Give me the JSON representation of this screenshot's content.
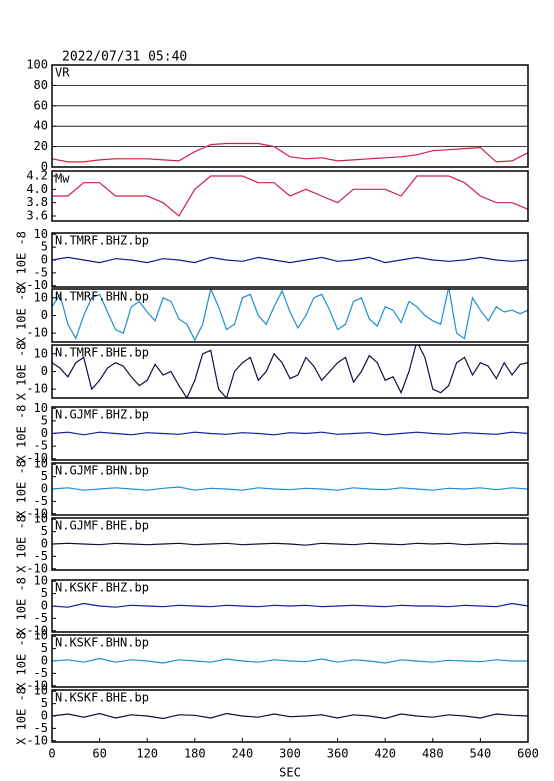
{
  "chart_data": [
    {
      "type": "line",
      "title": "2022/07/31 05:40",
      "label": "VR",
      "grid": true,
      "x": [
        0,
        20,
        40,
        60,
        80,
        100,
        120,
        140,
        160,
        180,
        200,
        220,
        240,
        260,
        280,
        300,
        320,
        340,
        360,
        380,
        400,
        420,
        440,
        460,
        480,
        500,
        520,
        540,
        560,
        580,
        600
      ],
      "series": [
        {
          "color": "#d0204a",
          "values": [
            8,
            5,
            5,
            7,
            8,
            8,
            8,
            7,
            6,
            15,
            22,
            23,
            23,
            23,
            20,
            10,
            8,
            9,
            6,
            7,
            8,
            9,
            10,
            12,
            16,
            17,
            18,
            19,
            5,
            6,
            14
          ]
        }
      ],
      "xlim": [
        0,
        600
      ],
      "ylim": [
        0,
        100
      ],
      "yticks": [
        0,
        20,
        40,
        60,
        80,
        100
      ]
    },
    {
      "type": "line",
      "label": "Mw",
      "x": [
        0,
        20,
        40,
        60,
        80,
        100,
        120,
        140,
        160,
        180,
        200,
        220,
        240,
        260,
        280,
        300,
        320,
        340,
        360,
        380,
        400,
        420,
        440,
        460,
        480,
        500,
        520,
        540,
        560,
        580,
        600
      ],
      "series": [
        {
          "color": "#d0204a",
          "values": [
            3.9,
            3.9,
            4.1,
            4.1,
            3.9,
            3.9,
            3.9,
            3.8,
            3.6,
            4.0,
            4.2,
            4.2,
            4.2,
            4.1,
            4.1,
            3.9,
            4.0,
            3.9,
            3.8,
            4.0,
            4.0,
            4.0,
            3.9,
            4.2,
            4.2,
            4.2,
            4.1,
            3.9,
            3.8,
            3.8,
            3.7
          ]
        }
      ],
      "xlim": [
        0,
        600
      ],
      "ylim": [
        3.525,
        4.275
      ],
      "yticks": [
        3.6,
        3.8,
        {
          "value": 4,
          "label": "4.0"
        },
        4.2
      ]
    },
    {
      "type": "line",
      "label": "N.TMRF.BHZ.bp",
      "ylabel": "X 10E -8",
      "x": [
        0,
        20,
        40,
        60,
        80,
        100,
        120,
        140,
        160,
        180,
        200,
        220,
        240,
        260,
        280,
        300,
        320,
        340,
        360,
        380,
        400,
        420,
        440,
        460,
        480,
        500,
        520,
        540,
        560,
        580,
        600
      ],
      "series": [
        {
          "color": "#1a1a9a",
          "values": [
            0,
            1,
            0,
            -1,
            0.5,
            0,
            -1,
            0.5,
            0,
            -1,
            1,
            0,
            -0.5,
            1,
            0,
            -1,
            0,
            1,
            -0.5,
            0,
            1,
            -1,
            0,
            1,
            0,
            -0.5,
            0,
            1,
            0,
            -0.5,
            0
          ]
        }
      ],
      "xlim": [
        0,
        600
      ],
      "ylim": [
        -10.5,
        10.5
      ],
      "yticks": [
        -10,
        -5,
        0,
        5,
        10
      ]
    },
    {
      "type": "line",
      "label": "N.TMRF.BHN.bp",
      "ylabel": "X 10E -8",
      "x": [
        0,
        10,
        20,
        30,
        40,
        50,
        60,
        70,
        80,
        90,
        100,
        110,
        120,
        130,
        140,
        150,
        160,
        170,
        180,
        190,
        200,
        210,
        220,
        230,
        240,
        250,
        260,
        270,
        280,
        290,
        300,
        310,
        320,
        330,
        340,
        350,
        360,
        370,
        380,
        390,
        400,
        410,
        420,
        430,
        440,
        450,
        460,
        470,
        480,
        490,
        500,
        510,
        520,
        530,
        540,
        550,
        560,
        570,
        580,
        590,
        600
      ],
      "series": [
        {
          "color": "#1e90d0",
          "values": [
            5,
            12,
            -5,
            -13,
            0,
            10,
            12,
            2,
            -8,
            -10,
            5,
            8,
            2,
            -3,
            10,
            8,
            -2,
            -5,
            -14,
            -5,
            15,
            5,
            -8,
            -5,
            10,
            12,
            0,
            -5,
            5,
            14,
            2,
            -7,
            0,
            10,
            12,
            3,
            -8,
            -5,
            8,
            10,
            -2,
            -6,
            5,
            3,
            -4,
            8,
            5,
            0,
            -3,
            -5,
            16,
            -10,
            -13,
            10,
            3,
            -3,
            5,
            2,
            3,
            1,
            3
          ]
        }
      ],
      "xlim": [
        0,
        600
      ],
      "ylim": [
        -15,
        15
      ],
      "yticks": [
        -10,
        0,
        10
      ]
    },
    {
      "type": "line",
      "label": "N.TMRF.BHE.bp",
      "ylabel": "X 10E -8",
      "x": [
        0,
        10,
        20,
        30,
        40,
        50,
        60,
        70,
        80,
        90,
        100,
        110,
        120,
        130,
        140,
        150,
        160,
        170,
        180,
        190,
        200,
        210,
        220,
        230,
        240,
        250,
        260,
        270,
        280,
        290,
        300,
        310,
        320,
        330,
        340,
        350,
        360,
        370,
        380,
        390,
        400,
        410,
        420,
        430,
        440,
        450,
        460,
        470,
        480,
        490,
        500,
        510,
        520,
        530,
        540,
        550,
        560,
        570,
        580,
        590,
        600
      ],
      "series": [
        {
          "color": "#101040",
          "values": [
            5,
            2,
            -3,
            5,
            8,
            -10,
            -5,
            2,
            5,
            3,
            -3,
            -8,
            -5,
            4,
            -2,
            0,
            -8,
            -15,
            -5,
            10,
            12,
            -10,
            -15,
            0,
            5,
            8,
            -5,
            0,
            10,
            5,
            -4,
            -2,
            8,
            3,
            -5,
            0,
            5,
            8,
            -6,
            0,
            9,
            5,
            -5,
            -3,
            -12,
            0,
            17,
            8,
            -10,
            -12,
            -8,
            5,
            8,
            -2,
            5,
            3,
            -4,
            5,
            -2,
            4,
            5
          ]
        }
      ],
      "xlim": [
        0,
        600
      ],
      "ylim": [
        -15,
        15
      ],
      "yticks": [
        -10,
        0,
        10
      ]
    },
    {
      "type": "line",
      "label": "N.GJMF.BHZ.bp",
      "ylabel": "X 10E -8",
      "x": [
        0,
        20,
        40,
        60,
        80,
        100,
        120,
        140,
        160,
        180,
        200,
        220,
        240,
        260,
        280,
        300,
        320,
        340,
        360,
        380,
        400,
        420,
        440,
        460,
        480,
        500,
        520,
        540,
        560,
        580,
        600
      ],
      "series": [
        {
          "color": "#1a1a9a",
          "values": [
            0,
            0.5,
            -0.5,
            0.5,
            0,
            -0.5,
            0.3,
            0,
            -0.3,
            0.5,
            0,
            -0.3,
            0.3,
            0,
            -0.5,
            0.3,
            0,
            0.5,
            -0.3,
            0,
            0.3,
            -0.5,
            0,
            0.5,
            0,
            -0.3,
            0.3,
            0,
            -0.3,
            0.5,
            0
          ]
        }
      ],
      "xlim": [
        0,
        600
      ],
      "ylim": [
        -10.5,
        10.5
      ],
      "yticks": [
        -10,
        -5,
        0,
        5,
        10
      ]
    },
    {
      "type": "line",
      "label": "N.GJMF.BHN.bp",
      "ylabel": "X 10E -8",
      "x": [
        0,
        20,
        40,
        60,
        80,
        100,
        120,
        140,
        160,
        180,
        200,
        220,
        240,
        260,
        280,
        300,
        320,
        340,
        360,
        380,
        400,
        420,
        440,
        460,
        480,
        500,
        520,
        540,
        560,
        580,
        600
      ],
      "series": [
        {
          "color": "#1e90d0",
          "values": [
            0,
            0.5,
            -0.5,
            0,
            0.5,
            0,
            -0.5,
            0.3,
            0.8,
            -0.5,
            0.3,
            0,
            -0.5,
            0.5,
            0,
            -0.3,
            0.3,
            0,
            -0.5,
            0.5,
            0,
            -0.3,
            0.5,
            0,
            -0.5,
            0.3,
            0,
            0.5,
            -0.3,
            0.5,
            0
          ]
        }
      ],
      "xlim": [
        0,
        600
      ],
      "ylim": [
        -10.5,
        10.5
      ],
      "yticks": [
        -10,
        -5,
        0,
        5,
        10
      ]
    },
    {
      "type": "line",
      "label": "N.GJMF.BHE.bp",
      "ylabel": "X 10E -8",
      "x": [
        0,
        20,
        40,
        60,
        80,
        100,
        120,
        140,
        160,
        180,
        200,
        220,
        240,
        260,
        280,
        300,
        320,
        340,
        360,
        380,
        400,
        420,
        440,
        460,
        480,
        500,
        520,
        540,
        560,
        580,
        600
      ],
      "series": [
        {
          "color": "#101040",
          "values": [
            0,
            0.3,
            0,
            -0.3,
            0.3,
            0,
            -0.3,
            0,
            0.3,
            -0.3,
            0,
            0.3,
            -0.3,
            0,
            0.3,
            0,
            -0.5,
            0.3,
            0,
            -0.3,
            0.3,
            0,
            -0.3,
            0.3,
            0,
            0.3,
            -0.3,
            0,
            0.3,
            0,
            0
          ]
        }
      ],
      "xlim": [
        0,
        600
      ],
      "ylim": [
        -10.5,
        10.5
      ],
      "yticks": [
        -10,
        -5,
        0,
        5,
        10
      ]
    },
    {
      "type": "line",
      "label": "N.KSKF.BHZ.bp",
      "ylabel": "X 10E -8",
      "x": [
        0,
        20,
        40,
        60,
        80,
        100,
        120,
        140,
        160,
        180,
        200,
        220,
        240,
        260,
        280,
        300,
        320,
        340,
        360,
        380,
        400,
        420,
        440,
        460,
        480,
        500,
        520,
        540,
        560,
        580,
        600
      ],
      "series": [
        {
          "color": "#1a1a9a",
          "values": [
            0,
            -0.5,
            1,
            0,
            -0.5,
            0.3,
            0,
            -0.3,
            0.3,
            0,
            -0.3,
            0.3,
            0,
            -0.3,
            0.3,
            0,
            0.3,
            -0.3,
            0,
            0.3,
            0,
            -0.3,
            0.3,
            0,
            0,
            -0.3,
            0.3,
            0,
            -0.3,
            1,
            0
          ]
        }
      ],
      "xlim": [
        0,
        600
      ],
      "ylim": [
        -10.5,
        10.5
      ],
      "yticks": [
        -10,
        -5,
        0,
        5,
        10
      ]
    },
    {
      "type": "line",
      "label": "N.KSKF.BHN.bp",
      "ylabel": "X 10E -8",
      "x": [
        0,
        20,
        40,
        60,
        80,
        100,
        120,
        140,
        160,
        180,
        200,
        220,
        240,
        260,
        280,
        300,
        320,
        340,
        360,
        380,
        400,
        420,
        440,
        460,
        480,
        500,
        520,
        540,
        560,
        580,
        600
      ],
      "series": [
        {
          "color": "#1e90d0",
          "values": [
            0,
            0.5,
            -0.5,
            1,
            -0.5,
            0.5,
            0,
            -0.8,
            0.5,
            0,
            -0.5,
            0.8,
            0,
            -0.5,
            0.5,
            0,
            -0.3,
            0.8,
            -0.5,
            0.5,
            0,
            -0.8,
            0.5,
            0,
            -0.5,
            0.3,
            0,
            -0.3,
            0.5,
            0,
            0
          ]
        }
      ],
      "xlim": [
        0,
        600
      ],
      "ylim": [
        -10.5,
        10.5
      ],
      "yticks": [
        -10,
        -5,
        0,
        5,
        10
      ]
    },
    {
      "type": "line",
      "label": "N.KSKF.BHE.bp",
      "ylabel": "X 10E -8",
      "xlabel": "SEC",
      "x": [
        0,
        20,
        40,
        60,
        80,
        100,
        120,
        140,
        160,
        180,
        200,
        220,
        240,
        260,
        280,
        300,
        320,
        340,
        360,
        380,
        400,
        420,
        440,
        460,
        480,
        500,
        520,
        540,
        560,
        580,
        600
      ],
      "series": [
        {
          "color": "#101040",
          "values": [
            0,
            0.8,
            -0.5,
            1,
            -0.8,
            0.5,
            0,
            -1,
            0.5,
            0.3,
            -0.8,
            1,
            0,
            -0.5,
            0.8,
            -0.3,
            0,
            0.5,
            -0.8,
            0.5,
            0,
            -1,
            0.8,
            0,
            -0.5,
            0.5,
            0,
            -0.8,
            0.8,
            0.3,
            0
          ]
        }
      ],
      "xlim": [
        0,
        600
      ],
      "ylim": [
        -10.5,
        10.5
      ],
      "yticks": [
        -10,
        -5,
        0,
        5,
        10
      ],
      "xticks": [
        0,
        60,
        120,
        180,
        240,
        300,
        360,
        420,
        480,
        540,
        600
      ]
    }
  ]
}
